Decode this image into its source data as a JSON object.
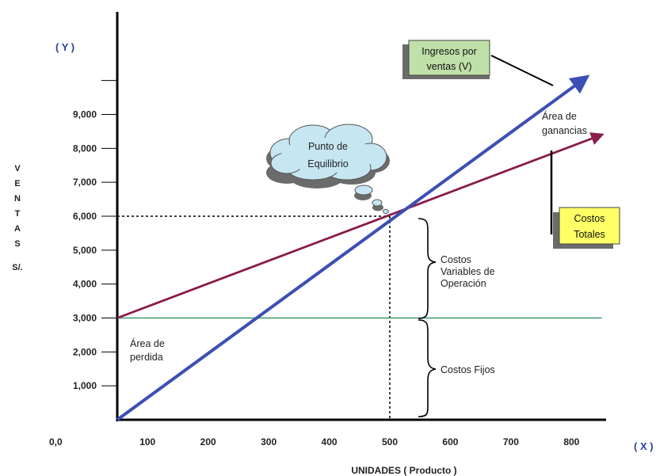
{
  "chart_data": {
    "type": "line",
    "y_axis_tag": "( Y )",
    "x_axis_tag": "( X )",
    "xlabel": "UNIDADES ( Producto )",
    "ylabel_letters": [
      "V",
      "E",
      "N",
      "T",
      "A",
      "S"
    ],
    "ylabel_unit": "S/.",
    "origin_label": "0,0",
    "x_ticks": [
      "100",
      "200",
      "300",
      "400",
      "500",
      "600",
      "700",
      "800"
    ],
    "y_ticks": [
      "1,000",
      "2,000",
      "3,000",
      "4,000",
      "5,000",
      "6,000",
      "7,000",
      "8,000",
      "9,000"
    ],
    "xlim": [
      50,
      850
    ],
    "ylim": [
      0,
      10000
    ],
    "series": [
      {
        "name": "Ingresos por ventas (V)",
        "color": "#3c4fb4",
        "points": [
          [
            50,
            0
          ],
          [
            825,
            10100
          ]
        ]
      },
      {
        "name": "Costos Totales",
        "color": "#8a1c4a",
        "points": [
          [
            50,
            3000
          ],
          [
            850,
            8400
          ]
        ]
      },
      {
        "name": "Costos Fijos",
        "color": "#3a9a6b",
        "points": [
          [
            50,
            3000
          ],
          [
            850,
            3000
          ]
        ]
      }
    ],
    "break_even": {
      "x": 500,
      "y": 6000
    },
    "labels": {
      "ingresos_line1": "Ingresos por",
      "ingresos_line2": "ventas (V)",
      "costos_totales_line1": "Costos",
      "costos_totales_line2": "Totales",
      "punto_line1": "Punto de",
      "punto_line2": "Equilibrio",
      "ganancias_line1": "Área de",
      "ganancias_line2": "ganancias",
      "perdida_line1": "Área de",
      "perdida_line2": "perdida",
      "variables_line1": "Costos",
      "variables_line2": "Variables de",
      "variables_line3": "Operación",
      "fijos": "Costos Fijos"
    },
    "colors": {
      "ingresos_box": "#bfe0a8",
      "costos_box": "#ffff66",
      "cloud": "#c6e6f2",
      "shadow": "#6b6b6b"
    }
  }
}
